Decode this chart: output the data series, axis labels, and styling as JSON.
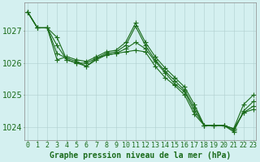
{
  "xlabel": "Graphe pression niveau de la mer (hPa)",
  "x": [
    0,
    1,
    2,
    3,
    4,
    5,
    6,
    7,
    8,
    9,
    10,
    11,
    12,
    13,
    14,
    15,
    16,
    17,
    18,
    19,
    20,
    21,
    22,
    23
  ],
  "series": [
    [
      1027.6,
      1027.1,
      1027.1,
      1026.8,
      1026.1,
      1026.0,
      1026.0,
      1026.15,
      1026.25,
      1026.3,
      1026.35,
      1026.4,
      1026.35,
      1025.9,
      1025.55,
      1025.3,
      1025.0,
      1024.4,
      1024.05,
      1024.05,
      1024.05,
      1023.95,
      1024.7,
      1025.0
    ],
    [
      1027.6,
      1027.1,
      1027.1,
      1026.55,
      1026.1,
      1026.0,
      1025.9,
      1026.1,
      1026.25,
      1026.3,
      1026.45,
      1026.65,
      1026.45,
      1026.05,
      1025.7,
      1025.35,
      1025.1,
      1024.5,
      1024.05,
      1024.05,
      1024.05,
      1023.95,
      1024.45,
      1024.55
    ],
    [
      1027.6,
      1027.1,
      1027.1,
      1026.3,
      1026.15,
      1026.05,
      1025.9,
      1026.15,
      1026.3,
      1026.35,
      1026.55,
      1027.15,
      1026.55,
      1026.1,
      1025.75,
      1025.45,
      1025.15,
      1024.6,
      1024.05,
      1024.05,
      1024.05,
      1023.9,
      1024.45,
      1024.65
    ],
    [
      1027.6,
      1027.1,
      1027.1,
      1026.1,
      1026.2,
      1026.1,
      1026.05,
      1026.2,
      1026.35,
      1026.4,
      1026.65,
      1027.25,
      1026.65,
      1026.2,
      1025.85,
      1025.55,
      1025.25,
      1024.7,
      1024.05,
      1024.05,
      1024.05,
      1023.85,
      1024.5,
      1024.8
    ]
  ],
  "line_color": "#1a6b1a",
  "marker": "+",
  "marker_size": 4,
  "background_color": "#d4f0f0",
  "grid_color": "#b0cece",
  "grid_major_color": "#a0bebe",
  "ylim": [
    1023.6,
    1027.9
  ],
  "yticks": [
    1024,
    1025,
    1026,
    1027
  ],
  "xticks": [
    0,
    1,
    2,
    3,
    4,
    5,
    6,
    7,
    8,
    9,
    10,
    11,
    12,
    13,
    14,
    15,
    16,
    17,
    18,
    19,
    20,
    21,
    22,
    23
  ],
  "xlabel_fontsize": 7,
  "tick_fontsize": 6,
  "label_color": "#1a6b1a"
}
